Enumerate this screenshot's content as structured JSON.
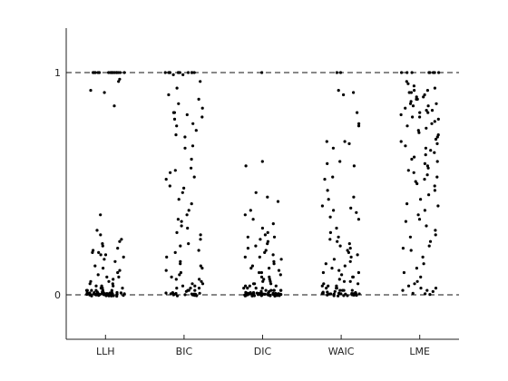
{
  "chart_data": {
    "type": "scatter",
    "title": "",
    "xlabel": "",
    "ylabel": "",
    "categories": [
      "LLH",
      "BIC",
      "DIC",
      "WAIC",
      "LME"
    ],
    "ylim": [
      -0.2,
      1.2
    ],
    "yticks": [
      0,
      1
    ],
    "reference_lines": [
      0,
      1
    ],
    "grid": false,
    "jitter": "horizontal",
    "points": {
      "LLH": [
        1,
        1,
        1,
        1,
        1,
        1,
        1,
        1,
        1,
        1,
        1,
        1,
        1,
        1,
        1,
        1,
        1,
        1,
        0.97,
        0.96,
        0.92,
        0.91,
        0.85,
        0.36,
        0.29,
        0.27,
        0.25,
        0.24,
        0.23,
        0.22,
        0.21,
        0.2,
        0.19,
        0.19,
        0.18,
        0.18,
        0.17,
        0.16,
        0.15,
        0.13,
        0.12,
        0.11,
        0.1,
        0.09,
        0.08,
        0.08,
        0.07,
        0.06,
        0.06,
        0.05,
        0.05,
        0.04,
        0.04,
        0.04,
        0.03,
        0.03,
        0.03,
        0.03,
        0.02,
        0.02,
        0.02,
        0.02,
        0.02,
        0.02,
        0.01,
        0.01,
        0.01,
        0.01,
        0.01,
        0.01,
        0.01,
        0.01,
        0.01,
        0.01,
        0.01,
        0.005,
        0.005,
        0.005,
        0.005,
        0.005,
        0.005,
        0.005,
        0.005,
        0.005,
        0.005,
        0.005,
        0.005,
        0.005,
        0.005,
        0,
        0,
        0,
        0,
        0,
        0,
        0,
        0,
        0,
        0,
        0,
        0,
        0,
        0,
        0,
        0,
        0,
        0,
        0,
        0,
        0
      ],
      "BIC": [
        1,
        1,
        1,
        1,
        1,
        1,
        1,
        1,
        1,
        1,
        1,
        1,
        0.99,
        0.99,
        0.96,
        0.93,
        0.9,
        0.88,
        0.86,
        0.84,
        0.82,
        0.82,
        0.81,
        0.8,
        0.79,
        0.77,
        0.76,
        0.74,
        0.72,
        0.71,
        0.67,
        0.66,
        0.61,
        0.57,
        0.56,
        0.55,
        0.53,
        0.52,
        0.49,
        0.48,
        0.46,
        0.43,
        0.41,
        0.38,
        0.36,
        0.34,
        0.33,
        0.31,
        0.3,
        0.28,
        0.27,
        0.25,
        0.23,
        0.22,
        0.2,
        0.19,
        0.17,
        0.15,
        0.14,
        0.13,
        0.12,
        0.11,
        0.1,
        0.09,
        0.08,
        0.07,
        0.07,
        0.06,
        0.05,
        0.05,
        0.04,
        0.04,
        0.03,
        0.03,
        0.03,
        0.02,
        0.02,
        0.02,
        0.01,
        0.01,
        0.01,
        0.01,
        0.005,
        0.005,
        0.005,
        0.005,
        0,
        0,
        0,
        0,
        0,
        0,
        0,
        0
      ],
      "DIC": [
        1,
        0.6,
        0.58,
        0.46,
        0.44,
        0.42,
        0.38,
        0.36,
        0.34,
        0.32,
        0.3,
        0.28,
        0.27,
        0.26,
        0.26,
        0.25,
        0.24,
        0.23,
        0.22,
        0.21,
        0.2,
        0.19,
        0.18,
        0.17,
        0.17,
        0.16,
        0.15,
        0.14,
        0.13,
        0.12,
        0.12,
        0.11,
        0.1,
        0.1,
        0.09,
        0.08,
        0.08,
        0.07,
        0.07,
        0.06,
        0.06,
        0.05,
        0.05,
        0.05,
        0.04,
        0.04,
        0.04,
        0.03,
        0.03,
        0.03,
        0.03,
        0.02,
        0.02,
        0.02,
        0.02,
        0.02,
        0.02,
        0.01,
        0.01,
        0.01,
        0.01,
        0.01,
        0.01,
        0.01,
        0.01,
        0.005,
        0.005,
        0.005,
        0.005,
        0.005,
        0.005,
        0.005,
        0.005,
        0.005,
        0.005,
        0.005,
        0.005,
        0.005,
        0.005,
        0.005,
        0,
        0,
        0,
        0,
        0,
        0,
        0,
        0,
        0,
        0,
        0,
        0,
        0,
        0,
        0,
        0,
        0,
        0,
        0,
        0,
        0,
        0,
        0,
        0,
        0,
        0,
        0,
        0,
        0,
        0,
        0,
        0
      ],
      "WAIC": [
        1,
        1,
        0.92,
        0.91,
        0.9,
        0.82,
        0.77,
        0.76,
        0.69,
        0.69,
        0.68,
        0.66,
        0.6,
        0.59,
        0.58,
        0.53,
        0.52,
        0.47,
        0.44,
        0.43,
        0.4,
        0.39,
        0.38,
        0.37,
        0.35,
        0.34,
        0.3,
        0.28,
        0.26,
        0.25,
        0.24,
        0.23,
        0.22,
        0.21,
        0.2,
        0.19,
        0.18,
        0.17,
        0.16,
        0.15,
        0.14,
        0.13,
        0.12,
        0.11,
        0.1,
        0.1,
        0.09,
        0.08,
        0.08,
        0.07,
        0.06,
        0.06,
        0.05,
        0.05,
        0.04,
        0.04,
        0.04,
        0.03,
        0.03,
        0.03,
        0.02,
        0.02,
        0.02,
        0.02,
        0.01,
        0.01,
        0.01,
        0.01,
        0.01,
        0.005,
        0.005,
        0.005,
        0.005,
        0.005,
        0.005,
        0.005,
        0.005,
        0.005,
        0.005,
        0,
        0,
        0,
        0,
        0,
        0,
        0,
        0,
        0,
        0,
        0,
        0
      ],
      "LME": [
        1,
        1,
        1,
        1,
        1,
        1,
        1,
        1,
        0.96,
        0.95,
        0.94,
        0.93,
        0.92,
        0.92,
        0.91,
        0.91,
        0.9,
        0.89,
        0.89,
        0.88,
        0.88,
        0.87,
        0.86,
        0.86,
        0.85,
        0.85,
        0.84,
        0.83,
        0.83,
        0.82,
        0.82,
        0.81,
        0.8,
        0.8,
        0.79,
        0.78,
        0.77,
        0.76,
        0.75,
        0.74,
        0.73,
        0.72,
        0.71,
        0.7,
        0.69,
        0.68,
        0.67,
        0.66,
        0.65,
        0.64,
        0.63,
        0.62,
        0.61,
        0.6,
        0.59,
        0.58,
        0.57,
        0.56,
        0.55,
        0.54,
        0.53,
        0.52,
        0.51,
        0.5,
        0.49,
        0.47,
        0.45,
        0.43,
        0.41,
        0.4,
        0.38,
        0.36,
        0.34,
        0.33,
        0.31,
        0.29,
        0.27,
        0.26,
        0.24,
        0.22,
        0.21,
        0.2,
        0.17,
        0.14,
        0.12,
        0.1,
        0.08,
        0.06,
        0.05,
        0.04,
        0.03,
        0.03,
        0.02,
        0.02,
        0.01,
        0.01,
        0.005,
        0.005
      ]
    }
  }
}
